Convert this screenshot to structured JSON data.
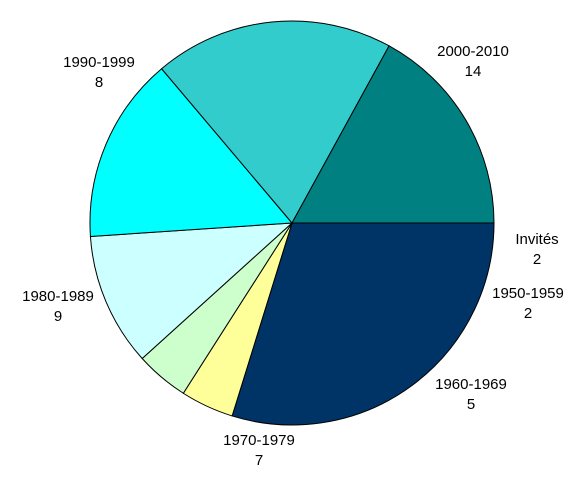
{
  "chart_data": {
    "type": "pie",
    "title": "",
    "slices": [
      {
        "label": "2000-2010",
        "value": 14,
        "color": "#003366"
      },
      {
        "label": "Invités",
        "value": 2,
        "color": "#FFFF99"
      },
      {
        "label": "1950-1959",
        "value": 2,
        "color": "#CCFFCC"
      },
      {
        "label": "1960-1969",
        "value": 5,
        "color": "#CCFFFF"
      },
      {
        "label": "1970-1979",
        "value": 7,
        "color": "#00FFFF"
      },
      {
        "label": "1980-1989",
        "value": 9,
        "color": "#33CCCC"
      },
      {
        "label": "1990-1999",
        "value": 8,
        "color": "#008080"
      }
    ],
    "start_direction": "3 o'clock",
    "direction": "clockwise",
    "data_labels": "category name and value"
  }
}
